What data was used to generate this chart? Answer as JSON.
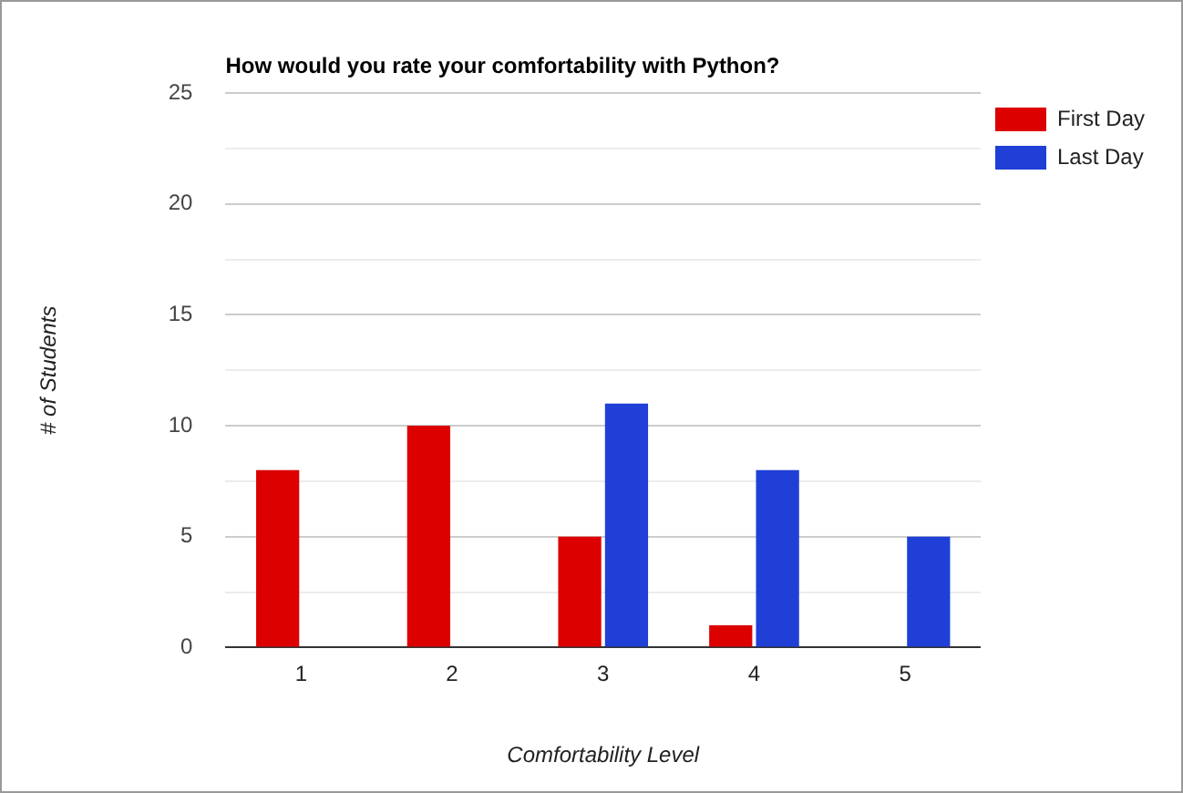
{
  "chart_data": {
    "type": "bar",
    "title": "How would you rate your comfortability with Python?",
    "xlabel": "Comfortability Level",
    "ylabel": "# of Students",
    "categories": [
      "1",
      "2",
      "3",
      "4",
      "5"
    ],
    "series": [
      {
        "name": "First Day",
        "color": "#dc0000",
        "values": [
          8,
          10,
          5,
          1,
          0
        ]
      },
      {
        "name": "Last Day",
        "color": "#1f3fd6",
        "values": [
          0,
          0,
          11,
          8,
          5
        ]
      }
    ],
    "ylim": [
      0,
      25
    ],
    "yticks": [
      0,
      {
        "value": 2.5,
        "label": null
      },
      5,
      {
        "value": 7.5,
        "label": null
      },
      10,
      {
        "value": 12.5,
        "label": null
      },
      15,
      {
        "value": 17.5,
        "label": null
      },
      20,
      {
        "value": 22.5,
        "label": null
      },
      25
    ],
    "grid": "y",
    "legend": "top right"
  }
}
